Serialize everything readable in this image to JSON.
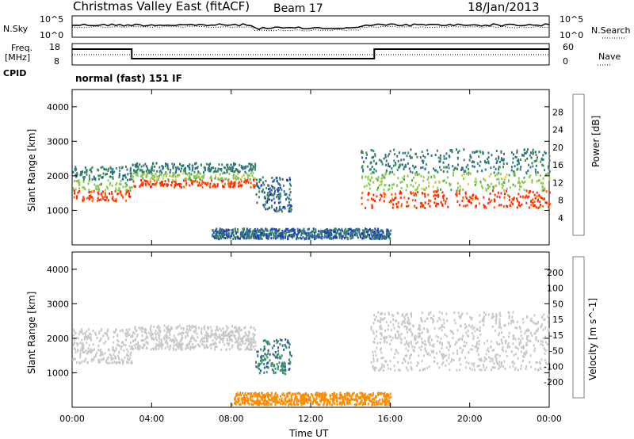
{
  "header": {
    "radar": "Christmas Valley East (fitACF)",
    "beam": "Beam 17",
    "date": "18/Jan/2013"
  },
  "noise_panel": {
    "left_label": "N.Sky",
    "right_label": "N.Search",
    "left_ticks": [
      "10^5",
      "10^0"
    ],
    "right_ticks": [
      "10^5",
      "10^0"
    ]
  },
  "freq_panel": {
    "left_label_1": "Freq.",
    "left_label_2": "[MHz]",
    "right_label": "Nave",
    "left_ticks": [
      "18",
      "8"
    ],
    "right_ticks": [
      "60",
      "0"
    ]
  },
  "cpid": {
    "label": "CPID",
    "value": "normal (fast) 151 IF"
  },
  "colors": {
    "power_scale": [
      "#0000ff",
      "#1e3cb4",
      "#2e6e8c",
      "#3c8c5a",
      "#3caa50",
      "#8cc850",
      "#e6c832",
      "#ff9614",
      "#ff6400",
      "#ff2800",
      "#ff0000"
    ],
    "velocity_scale": [
      "#ff0000",
      "#ff5a00",
      "#ff8c00",
      "#ffa03c",
      "#c8c8c8",
      "#78c864",
      "#46a03c",
      "#3c8c6e",
      "#2d5aa0",
      "#1e3cc8"
    ]
  },
  "chart_data": [
    {
      "type": "heatmap",
      "title": "Power",
      "xlabel": "Time UT",
      "ylabel": "Slant Range [km]",
      "xlim": [
        0,
        24
      ],
      "ylim": [
        0,
        4500
      ],
      "x_ticks": [
        "00:00",
        "04:00",
        "08:00",
        "12:00",
        "16:00",
        "20:00",
        "00:00"
      ],
      "y_ticks": [
        "1000",
        "2000",
        "3000",
        "4000"
      ],
      "colorbar": {
        "label": "Power [dB]",
        "ticks": [
          "4",
          "8",
          "12",
          "16",
          "20",
          "24",
          "28"
        ],
        "range": [
          0,
          32
        ]
      },
      "regions": [
        {
          "name": "first-echo-band",
          "t_start": 0,
          "t_end": 3,
          "r_low": 1300,
          "r_high": 2300,
          "power": [
            28,
            16,
            8
          ]
        },
        {
          "name": "main-echo-band",
          "t_start": 3,
          "t_end": 9.2,
          "r_low": 1700,
          "r_high": 2400,
          "power": [
            28,
            16,
            8
          ]
        },
        {
          "name": "blue-patch",
          "t_start": 9.2,
          "t_end": 11,
          "r_low": 1000,
          "r_high": 2000,
          "power": [
            4,
            8
          ]
        },
        {
          "name": "late-echo-band",
          "t_start": 14.5,
          "t_end": 24,
          "r_low": 1100,
          "r_high": 2800,
          "power": [
            28,
            16,
            8
          ]
        },
        {
          "name": "near-range-scatter",
          "t_start": 7,
          "t_end": 16,
          "r_low": 200,
          "r_high": 500,
          "power": [
            4,
            8
          ]
        }
      ]
    },
    {
      "type": "heatmap",
      "title": "Velocity",
      "xlabel": "Time UT",
      "ylabel": "Slant Range [km]",
      "xlim": [
        0,
        24
      ],
      "ylim": [
        0,
        4500
      ],
      "x_ticks": [
        "00:00",
        "04:00",
        "08:00",
        "12:00",
        "16:00",
        "20:00",
        "00:00"
      ],
      "y_ticks": [
        "1000",
        "2000",
        "3000",
        "4000"
      ],
      "colorbar": {
        "label": "Velocity [m s^-1]",
        "ticks": [
          "200",
          "100",
          "50",
          "15",
          "-15",
          "-50",
          "-100",
          "-200"
        ],
        "range": [
          -250,
          250
        ]
      },
      "regions": [
        {
          "name": "ground-scatter-band-1",
          "t_start": 0,
          "t_end": 3,
          "r_low": 1300,
          "r_high": 2300,
          "velocity": 0
        },
        {
          "name": "ground-scatter-band-2",
          "t_start": 3,
          "t_end": 9.2,
          "r_low": 1700,
          "r_high": 2400,
          "velocity": 0
        },
        {
          "name": "negative-patch",
          "t_start": 9.2,
          "t_end": 11,
          "r_low": 1000,
          "r_high": 2000,
          "velocity": 120
        },
        {
          "name": "ground-scatter-band-3",
          "t_start": 15,
          "t_end": 24,
          "r_low": 1100,
          "r_high": 2800,
          "velocity": 0
        },
        {
          "name": "near-range-flow",
          "t_start": 8,
          "t_end": 16,
          "r_low": 100,
          "r_high": 450,
          "velocity": -60
        }
      ]
    }
  ],
  "xaxis_label": "Time UT"
}
